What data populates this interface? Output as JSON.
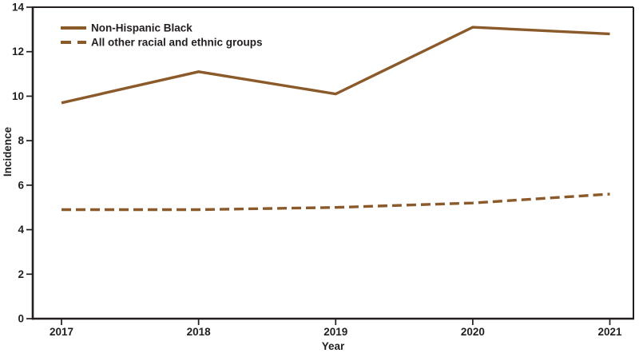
{
  "figure": {
    "background": "#ffffff"
  },
  "chart_data": {
    "type": "line",
    "title": "",
    "xlabel": "Year",
    "ylabel": "Incidence",
    "categories": [
      "2017",
      "2018",
      "2019",
      "2020",
      "2021"
    ],
    "series": [
      {
        "name": "Non-Hispanic Black",
        "line_style": "solid",
        "values": [
          9.7,
          11.1,
          10.1,
          13.1,
          12.8
        ]
      },
      {
        "name": "All other racial and ethnic groups",
        "line_style": "dashed",
        "values": [
          4.9,
          4.9,
          5.0,
          5.2,
          5.6
        ]
      }
    ],
    "ylim": [
      0,
      14
    ],
    "ytick_step": 2,
    "grid": false,
    "legend_position": "top-left",
    "line_color": "#8B5A2B",
    "axis_color": "#231F20",
    "text_color": "#231F20"
  }
}
